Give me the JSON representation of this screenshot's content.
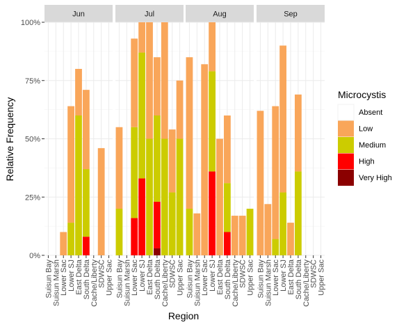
{
  "chart_data": {
    "type": "bar",
    "stacked": true,
    "facet_by": "month",
    "facets": [
      "Jun",
      "Jul",
      "Aug",
      "Sep"
    ],
    "categories": [
      "Suisun Bay",
      "Suisun Marsh",
      "Lower Sac",
      "Lower SJ",
      "East Delta",
      "South Delta",
      "Cache/Liberty",
      "SDWSC",
      "Upper Sac"
    ],
    "xlabel": "Region",
    "ylabel": "Relative Frequency",
    "ylim": [
      0,
      1
    ],
    "yticks": [
      0,
      0.25,
      0.5,
      0.75,
      1.0
    ],
    "ytick_labels": [
      "0%",
      "25%",
      "50%",
      "75%",
      "100%"
    ],
    "legend": {
      "title": "Microcystis",
      "position": "right",
      "entries": [
        "Absent",
        "Low",
        "Medium",
        "High",
        "Very High"
      ]
    },
    "colors": {
      "Absent": "#ffffff",
      "Low": "#f9a65a",
      "Medium": "#cccc00",
      "High": "#ff0000",
      "Very High": "#8b0000"
    },
    "panel_background": "#ffffff",
    "grid": true,
    "data": {
      "Jun": {
        "Suisun Bay": {
          "Low": 0,
          "Medium": 0,
          "High": 0,
          "Very High": 0
        },
        "Suisun Marsh": {
          "Low": 0,
          "Medium": 0,
          "High": 0,
          "Very High": 0
        },
        "Lower Sac": {
          "Low": 0.1,
          "Medium": 0,
          "High": 0,
          "Very High": 0
        },
        "Lower SJ": {
          "Low": 0.5,
          "Medium": 0.14,
          "High": 0,
          "Very High": 0
        },
        "East Delta": {
          "Low": 0.2,
          "Medium": 0.6,
          "High": 0,
          "Very High": 0
        },
        "South Delta": {
          "Low": 0.34,
          "Medium": 0.29,
          "High": 0.08,
          "Very High": 0
        },
        "Cache/Liberty": {
          "Low": 0,
          "Medium": 0,
          "High": 0,
          "Very High": 0
        },
        "SDWSC": {
          "Low": 0.46,
          "Medium": 0,
          "High": 0,
          "Very High": 0
        },
        "Upper Sac": {
          "Low": 0,
          "Medium": 0,
          "High": 0,
          "Very High": 0
        }
      },
      "Jul": {
        "Suisun Bay": {
          "Low": 0.35,
          "Medium": 0.2,
          "High": 0,
          "Very High": 0
        },
        "Suisun Marsh": {
          "Low": 0,
          "Medium": 0,
          "High": 0,
          "Very High": 0
        },
        "Lower Sac": {
          "Low": 0.38,
          "Medium": 0.39,
          "High": 0.16,
          "Very High": 0
        },
        "Lower SJ": {
          "Low": 0.13,
          "Medium": 0.54,
          "High": 0.33,
          "Very High": 0
        },
        "East Delta": {
          "Low": 0.5,
          "Medium": 0.5,
          "High": 0,
          "Very High": 0
        },
        "South Delta": {
          "Low": 0.25,
          "Medium": 0.37,
          "High": 0.2,
          "Very High": 0.03
        },
        "Cache/Liberty": {
          "Low": 0.5,
          "Medium": 0.5,
          "High": 0,
          "Very High": 0
        },
        "SDWSC": {
          "Low": 0.27,
          "Medium": 0.27,
          "High": 0,
          "Very High": 0
        },
        "Upper Sac": {
          "Low": 0.25,
          "Medium": 0.5,
          "High": 0,
          "Very High": 0
        }
      },
      "Aug": {
        "Suisun Bay": {
          "Low": 0.65,
          "Medium": 0.2,
          "High": 0,
          "Very High": 0
        },
        "Suisun Marsh": {
          "Low": 0.18,
          "Medium": 0,
          "High": 0,
          "Very High": 0
        },
        "Lower Sac": {
          "Low": 0.82,
          "Medium": 0,
          "High": 0,
          "Very High": 0
        },
        "Lower SJ": {
          "Low": 0.21,
          "Medium": 0.43,
          "High": 0.36,
          "Very High": 0
        },
        "East Delta": {
          "Low": 0.5,
          "Medium": 0,
          "High": 0,
          "Very High": 0
        },
        "South Delta": {
          "Low": 0.29,
          "Medium": 0.21,
          "High": 0.1,
          "Very High": 0
        },
        "Cache/Liberty": {
          "Low": 0.17,
          "Medium": 0,
          "High": 0,
          "Very High": 0
        },
        "SDWSC": {
          "Low": 0.17,
          "Medium": 0,
          "High": 0,
          "Very High": 0
        },
        "Upper Sac": {
          "Low": 0,
          "Medium": 0.2,
          "High": 0,
          "Very High": 0
        }
      },
      "Sep": {
        "Suisun Bay": {
          "Low": 0.62,
          "Medium": 0,
          "High": 0,
          "Very High": 0
        },
        "Suisun Marsh": {
          "Low": 0.22,
          "Medium": 0,
          "High": 0,
          "Very High": 0
        },
        "Lower Sac": {
          "Low": 0.57,
          "Medium": 0.07,
          "High": 0,
          "Very High": 0
        },
        "Lower SJ": {
          "Low": 0.63,
          "Medium": 0.27,
          "High": 0,
          "Very High": 0
        },
        "East Delta": {
          "Low": 0.14,
          "Medium": 0,
          "High": 0,
          "Very High": 0
        },
        "South Delta": {
          "Low": 0.33,
          "Medium": 0.36,
          "High": 0,
          "Very High": 0
        },
        "Cache/Liberty": {
          "Low": 0,
          "Medium": 0,
          "High": 0,
          "Very High": 0
        },
        "SDWSC": {
          "Low": 0,
          "Medium": 0,
          "High": 0,
          "Very High": 0
        },
        "Upper Sac": {
          "Low": 0,
          "Medium": 0,
          "High": 0,
          "Very High": 0
        }
      }
    }
  }
}
